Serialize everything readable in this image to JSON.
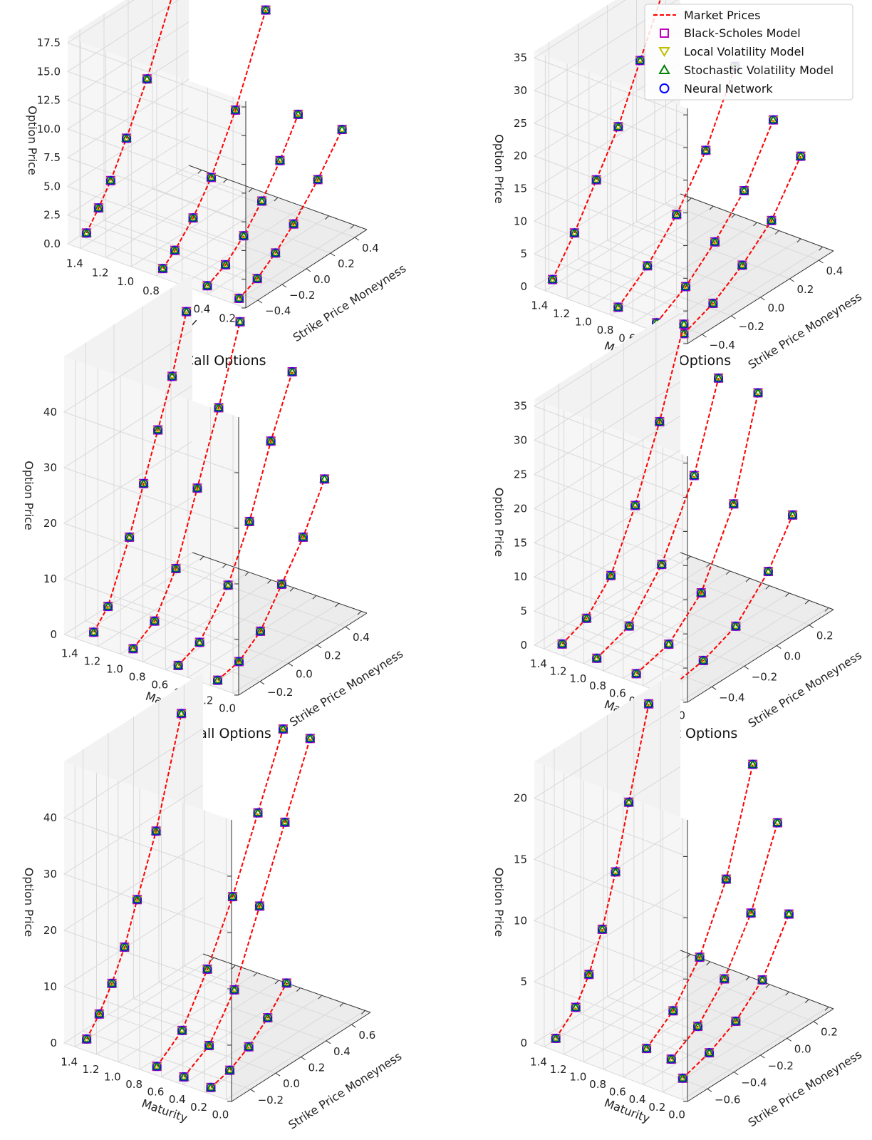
{
  "legend": {
    "market": "Market Prices",
    "bs": "Black-Scholes Model",
    "lv": "Local Volatility Model",
    "sv": "Stochastic Volatility Model",
    "nn": "Neural Network"
  },
  "colors": {
    "market": "#ff0000",
    "bs": "#bf00bf",
    "lv": "#bfbf00",
    "sv": "#008000",
    "nn": "#0000ff",
    "pane": "#f2f2f2",
    "grid": "#d9d9d9"
  },
  "chart_data": [
    {
      "type": "scatter",
      "title": "PG Call Options",
      "xlabel": "Strike Price Moneyness",
      "ylabel": "Maturity",
      "zlabel": "Option Price",
      "xticks": [
        -0.4,
        -0.2,
        0.0,
        0.2,
        0.4
      ],
      "xlim": [
        -0.5,
        0.5
      ],
      "yticks": [
        0.2,
        0.4,
        0.6,
        0.8,
        1.0,
        1.2,
        1.4
      ],
      "ylim": [
        0.1,
        1.5
      ],
      "zticks": [
        0.0,
        2.5,
        5.0,
        7.5,
        10.0,
        12.5,
        15.0,
        17.5
      ],
      "zlim": [
        0,
        18
      ],
      "series_curves": [
        {
          "maturity": 1.4,
          "points": [
            [
              -0.45,
              1.0
            ],
            [
              -0.35,
              2.5
            ],
            [
              -0.25,
              4.2
            ],
            [
              -0.12,
              7.0
            ],
            [
              0.05,
              11.0
            ],
            [
              0.3,
              18.0
            ]
          ]
        },
        {
          "maturity": 0.8,
          "points": [
            [
              -0.45,
              0.3
            ],
            [
              -0.35,
              1.2
            ],
            [
              -0.2,
              3.0
            ],
            [
              -0.05,
              5.5
            ],
            [
              0.15,
              10.0
            ],
            [
              0.4,
              17.0
            ]
          ]
        },
        {
          "maturity": 0.45,
          "points": [
            [
              -0.45,
              0.2
            ],
            [
              -0.3,
              1.0
            ],
            [
              -0.15,
              2.5
            ],
            [
              0.0,
              4.5
            ],
            [
              0.15,
              7.0
            ],
            [
              0.3,
              10.0
            ]
          ]
        },
        {
          "maturity": 0.2,
          "points": [
            [
              -0.45,
              0.1
            ],
            [
              -0.3,
              0.8
            ],
            [
              -0.15,
              2.0
            ],
            [
              0.0,
              3.5
            ],
            [
              0.2,
              6.0
            ],
            [
              0.4,
              9.0
            ]
          ]
        }
      ]
    },
    {
      "type": "scatter",
      "title": "PG Put Options",
      "xlabel": "Strike Price Moneyness",
      "ylabel": "Maturity",
      "zlabel": "Option Price",
      "xticks": [
        -0.4,
        -0.2,
        0.0,
        0.2,
        0.4
      ],
      "xlim": [
        -0.5,
        0.5
      ],
      "yticks": [
        0.2,
        0.4,
        0.6,
        0.8,
        1.0,
        1.2,
        1.4
      ],
      "ylim": [
        0.1,
        1.5
      ],
      "zticks": [
        0,
        5,
        10,
        15,
        20,
        25,
        30,
        35
      ],
      "zlim": [
        0,
        36
      ],
      "series_curves": [
        {
          "maturity": 1.4,
          "points": [
            [
              -0.45,
              1.0
            ],
            [
              -0.3,
              6.0
            ],
            [
              -0.15,
              12.0
            ],
            [
              0.0,
              18.0
            ],
            [
              0.15,
              26.0
            ],
            [
              0.3,
              34.0
            ]
          ]
        },
        {
          "maturity": 0.8,
          "points": [
            [
              -0.45,
              0.5
            ],
            [
              -0.25,
              4.0
            ],
            [
              -0.05,
              9.0
            ],
            [
              0.15,
              16.0
            ],
            [
              0.35,
              26.0
            ]
          ]
        },
        {
          "maturity": 0.45,
          "points": [
            [
              -0.45,
              0.3
            ],
            [
              -0.25,
              3.0
            ],
            [
              -0.05,
              7.0
            ],
            [
              0.15,
              12.0
            ],
            [
              0.35,
              20.0
            ]
          ]
        },
        {
          "maturity": 0.2,
          "points": [
            [
              -0.45,
              0.2
            ],
            [
              -0.25,
              2.0
            ],
            [
              -0.05,
              5.0
            ],
            [
              0.15,
              9.0
            ],
            [
              0.35,
              16.0
            ]
          ]
        }
      ]
    },
    {
      "type": "scatter",
      "title": "PYPL Call Options",
      "xlabel": "Strike Price Moneyness",
      "ylabel": "Maturity",
      "zlabel": "Option Price",
      "xticks": [
        -0.2,
        0.0,
        0.2,
        0.4
      ],
      "xlim": [
        -0.35,
        0.55
      ],
      "yticks": [
        0.0,
        0.2,
        0.4,
        0.6,
        0.8,
        1.0,
        1.2,
        1.4
      ],
      "ylim": [
        -0.05,
        1.5
      ],
      "zticks": [
        0,
        10,
        20,
        30,
        40
      ],
      "zlim": [
        0,
        50
      ],
      "series_curves": [
        {
          "maturity": 1.3,
          "points": [
            [
              -0.3,
              1.0
            ],
            [
              -0.2,
              4.0
            ],
            [
              -0.05,
              14.0
            ],
            [
              0.05,
              22.0
            ],
            [
              0.15,
              30.0
            ],
            [
              0.25,
              38.0
            ],
            [
              0.35,
              48.0
            ]
          ]
        },
        {
          "maturity": 0.95,
          "points": [
            [
              -0.3,
              0.5
            ],
            [
              -0.15,
              3.0
            ],
            [
              0.0,
              10.0
            ],
            [
              0.15,
              22.0
            ],
            [
              0.3,
              34.0
            ],
            [
              0.45,
              47.0
            ]
          ]
        },
        {
          "maturity": 0.55,
          "points": [
            [
              -0.3,
              0.3
            ],
            [
              -0.15,
              2.0
            ],
            [
              0.05,
              9.0
            ],
            [
              0.2,
              18.0
            ],
            [
              0.35,
              30.0
            ],
            [
              0.5,
              40.0
            ]
          ]
        },
        {
          "maturity": 0.2,
          "points": [
            [
              -0.3,
              0.1
            ],
            [
              -0.15,
              1.0
            ],
            [
              0.0,
              4.0
            ],
            [
              0.15,
              10.0
            ],
            [
              0.3,
              16.0
            ],
            [
              0.45,
              24.0
            ]
          ]
        }
      ]
    },
    {
      "type": "scatter",
      "title": "PYPL Put Options",
      "xlabel": "Strike Price Moneyness",
      "ylabel": "Maturity",
      "zlabel": "Option Price",
      "xticks": [
        -0.4,
        -0.2,
        0.0,
        0.2
      ],
      "xlim": [
        -0.55,
        0.35
      ],
      "yticks": [
        0.0,
        0.2,
        0.4,
        0.6,
        0.8,
        1.0,
        1.2,
        1.4
      ],
      "ylim": [
        -0.05,
        1.5
      ],
      "zticks": [
        0,
        5,
        10,
        15,
        20,
        25,
        30,
        35
      ],
      "zlim": [
        0,
        36
      ],
      "series_curves": [
        {
          "maturity": 1.3,
          "points": [
            [
              -0.5,
              0.5
            ],
            [
              -0.35,
              2.0
            ],
            [
              -0.2,
              6.0
            ],
            [
              -0.05,
              14.0
            ],
            [
              0.1,
              24.0
            ],
            [
              0.25,
              36.0
            ]
          ]
        },
        {
          "maturity": 0.95,
          "points": [
            [
              -0.5,
              0.3
            ],
            [
              -0.3,
              2.0
            ],
            [
              -0.1,
              8.0
            ],
            [
              0.1,
              18.0
            ],
            [
              0.25,
              30.0
            ]
          ]
        },
        {
          "maturity": 0.55,
          "points": [
            [
              -0.5,
              0.2
            ],
            [
              -0.3,
              1.5
            ],
            [
              -0.1,
              6.0
            ],
            [
              0.1,
              16.0
            ],
            [
              0.25,
              30.0
            ]
          ]
        },
        {
          "maturity": 0.2,
          "points": [
            [
              -0.5,
              0.1
            ],
            [
              -0.3,
              1.0
            ],
            [
              -0.1,
              3.0
            ],
            [
              0.1,
              8.0
            ],
            [
              0.25,
              14.0
            ]
          ]
        }
      ]
    },
    {
      "type": "scatter",
      "title": "",
      "xlabel": "Strike Price Moneyness",
      "ylabel": "Maturity",
      "zlabel": "Option Price",
      "xticks": [
        -0.2,
        0.0,
        0.2,
        0.4,
        0.6
      ],
      "xlim": [
        -0.35,
        0.75
      ],
      "yticks": [
        0.0,
        0.2,
        0.4,
        0.6,
        0.8,
        1.0,
        1.2,
        1.4
      ],
      "ylim": [
        -0.05,
        1.5
      ],
      "zticks": [
        0,
        10,
        20,
        30,
        40
      ],
      "zlim": [
        0,
        50
      ],
      "series_curves": [
        {
          "maturity": 1.35,
          "points": [
            [
              -0.3,
              1.0
            ],
            [
              -0.2,
              4.0
            ],
            [
              -0.1,
              8.0
            ],
            [
              0.0,
              13.0
            ],
            [
              0.1,
              20.0
            ],
            [
              0.25,
              30.0
            ],
            [
              0.45,
              48.0
            ]
          ]
        },
        {
          "maturity": 0.7,
          "points": [
            [
              -0.3,
              0.5
            ],
            [
              -0.1,
              4.0
            ],
            [
              0.1,
              12.0
            ],
            [
              0.3,
              22.0
            ],
            [
              0.5,
              34.0
            ],
            [
              0.7,
              46.0
            ]
          ]
        },
        {
          "maturity": 0.45,
          "points": [
            [
              -0.3,
              0.3
            ],
            [
              -0.1,
              3.0
            ],
            [
              0.1,
              10.0
            ],
            [
              0.3,
              22.0
            ],
            [
              0.5,
              34.0
            ],
            [
              0.7,
              46.0
            ]
          ]
        },
        {
          "maturity": 0.2,
          "points": [
            [
              -0.3,
              0.1
            ],
            [
              -0.15,
              1.0
            ],
            [
              0.0,
              3.0
            ],
            [
              0.15,
              6.0
            ],
            [
              0.3,
              10.0
            ]
          ]
        }
      ]
    },
    {
      "type": "scatter",
      "title": "",
      "xlabel": "Strike Price Moneyness",
      "ylabel": "Maturity",
      "zlabel": "Option Price",
      "xticks": [
        -0.6,
        -0.4,
        -0.2,
        0.0,
        0.2
      ],
      "xlim": [
        -0.75,
        0.35
      ],
      "yticks": [
        0.0,
        0.2,
        0.4,
        0.6,
        0.8,
        1.0,
        1.2,
        1.4
      ],
      "ylim": [
        -0.05,
        1.5
      ],
      "zticks": [
        0,
        5,
        10,
        15,
        20
      ],
      "zlim": [
        0,
        23
      ],
      "series_curves": [
        {
          "maturity": 1.35,
          "points": [
            [
              -0.7,
              0.5
            ],
            [
              -0.55,
              2.0
            ],
            [
              -0.45,
              4.0
            ],
            [
              -0.35,
              7.0
            ],
            [
              -0.25,
              11.0
            ],
            [
              -0.15,
              16.0
            ],
            [
              0.0,
              23.0
            ]
          ]
        },
        {
          "maturity": 0.7,
          "points": [
            [
              -0.5,
              0.3
            ],
            [
              -0.3,
              2.0
            ],
            [
              -0.1,
              5.0
            ],
            [
              0.1,
              10.0
            ],
            [
              0.3,
              18.0
            ]
          ]
        },
        {
          "maturity": 0.45,
          "points": [
            [
              -0.5,
              0.2
            ],
            [
              -0.3,
              1.5
            ],
            [
              -0.1,
              4.0
            ],
            [
              0.1,
              8.0
            ],
            [
              0.3,
              14.0
            ]
          ]
        },
        {
          "maturity": 0.2,
          "points": [
            [
              -0.6,
              0.1
            ],
            [
              -0.4,
              0.8
            ],
            [
              -0.2,
              2.0
            ],
            [
              0.0,
              4.0
            ],
            [
              0.2,
              8.0
            ]
          ]
        }
      ]
    }
  ]
}
